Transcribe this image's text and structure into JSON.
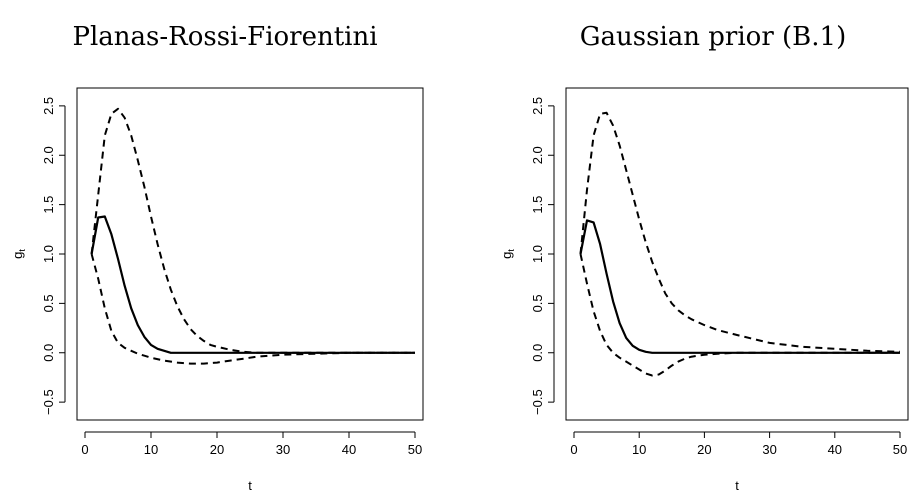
{
  "chart_data": [
    {
      "type": "line",
      "title": "Planas-Rossi-Fiorentini",
      "xlabel": "t",
      "ylabel": "g",
      "ylabel_subscript": "t",
      "xlim": [
        0,
        50
      ],
      "ylim": [
        -0.6,
        2.6
      ],
      "xticks": [
        "0",
        "10",
        "20",
        "30",
        "40",
        "50"
      ],
      "yticks": [
        "−0.5",
        "0.0",
        "0.5",
        "1.0",
        "1.5",
        "2.0",
        "2.5"
      ],
      "xtick_values": [
        0,
        10,
        20,
        30,
        40,
        50
      ],
      "ytick_values": [
        -0.5,
        0,
        0.5,
        1.0,
        1.5,
        2.0,
        2.5
      ],
      "series": [
        {
          "style": "dashed",
          "x": [
            1,
            2,
            3,
            4,
            5,
            6,
            7,
            8,
            9,
            10,
            11,
            12,
            13,
            14,
            15,
            16,
            17,
            18,
            19,
            20,
            22,
            24,
            26,
            28,
            30,
            35,
            40,
            45,
            50
          ],
          "y": [
            1.0,
            1.6,
            2.2,
            2.42,
            2.47,
            2.38,
            2.2,
            1.95,
            1.68,
            1.38,
            1.1,
            0.85,
            0.64,
            0.47,
            0.34,
            0.24,
            0.17,
            0.12,
            0.08,
            0.06,
            0.03,
            0.01,
            0.0,
            0.0,
            0.0,
            0.0,
            0.0,
            0.0,
            0.0
          ]
        },
        {
          "style": "solid",
          "x": [
            1,
            2,
            3,
            4,
            5,
            6,
            7,
            8,
            9,
            10,
            11,
            12,
            13,
            14,
            16,
            18,
            20,
            25,
            30,
            40,
            50
          ],
          "y": [
            1.0,
            1.37,
            1.38,
            1.2,
            0.95,
            0.68,
            0.45,
            0.28,
            0.16,
            0.08,
            0.04,
            0.02,
            0.0,
            0.0,
            0.0,
            0.0,
            0.0,
            0.0,
            0.0,
            0.0,
            0.0
          ]
        },
        {
          "style": "dashed",
          "x": [
            1,
            2,
            3,
            4,
            5,
            6,
            7,
            8,
            9,
            10,
            12,
            14,
            16,
            18,
            20,
            22,
            24,
            26,
            28,
            30,
            35,
            40,
            45,
            50
          ],
          "y": [
            1.0,
            0.75,
            0.45,
            0.22,
            0.1,
            0.05,
            0.02,
            -0.01,
            -0.03,
            -0.05,
            -0.08,
            -0.1,
            -0.11,
            -0.11,
            -0.1,
            -0.08,
            -0.06,
            -0.04,
            -0.03,
            -0.02,
            -0.01,
            0.0,
            0.0,
            0.0
          ]
        }
      ]
    },
    {
      "type": "line",
      "title": "Gaussian prior (B.1)",
      "xlabel": "t",
      "ylabel": "g",
      "ylabel_subscript": "t",
      "xlim": [
        0,
        50
      ],
      "ylim": [
        -0.6,
        2.6
      ],
      "xticks": [
        "0",
        "10",
        "20",
        "30",
        "40",
        "50"
      ],
      "yticks": [
        "−0.5",
        "0.0",
        "0.5",
        "1.0",
        "1.5",
        "2.0",
        "2.5"
      ],
      "xtick_values": [
        0,
        10,
        20,
        30,
        40,
        50
      ],
      "ytick_values": [
        -0.5,
        0,
        0.5,
        1.0,
        1.5,
        2.0,
        2.5
      ],
      "series": [
        {
          "style": "dashed",
          "x": [
            1,
            2,
            3,
            4,
            5,
            6,
            7,
            8,
            9,
            10,
            11,
            12,
            13,
            14,
            15,
            16,
            17,
            18,
            20,
            22,
            25,
            30,
            35,
            40,
            45,
            50
          ],
          "y": [
            1.0,
            1.65,
            2.2,
            2.42,
            2.43,
            2.3,
            2.1,
            1.85,
            1.6,
            1.35,
            1.12,
            0.92,
            0.75,
            0.6,
            0.5,
            0.43,
            0.38,
            0.34,
            0.28,
            0.23,
            0.18,
            0.1,
            0.06,
            0.04,
            0.02,
            0.01
          ]
        },
        {
          "style": "solid",
          "x": [
            1,
            2,
            3,
            4,
            5,
            6,
            7,
            8,
            9,
            10,
            11,
            12,
            13,
            14,
            16,
            18,
            20,
            25,
            30,
            40,
            50
          ],
          "y": [
            1.0,
            1.34,
            1.32,
            1.1,
            0.8,
            0.52,
            0.3,
            0.15,
            0.07,
            0.03,
            0.01,
            0.0,
            0.0,
            0.0,
            0.0,
            0.0,
            0.0,
            0.0,
            0.0,
            0.0,
            0.0
          ]
        },
        {
          "style": "dashed",
          "x": [
            1,
            2,
            3,
            4,
            5,
            6,
            7,
            8,
            9,
            10,
            11,
            12,
            13,
            14,
            15,
            16,
            17,
            18,
            19,
            20,
            22,
            25,
            30,
            35,
            40,
            50
          ],
          "y": [
            1.0,
            0.7,
            0.42,
            0.22,
            0.08,
            0.0,
            -0.05,
            -0.09,
            -0.13,
            -0.17,
            -0.21,
            -0.23,
            -0.22,
            -0.18,
            -0.13,
            -0.09,
            -0.06,
            -0.04,
            -0.03,
            -0.02,
            -0.01,
            0.0,
            0.0,
            0.0,
            0.0,
            0.0
          ]
        }
      ]
    }
  ]
}
